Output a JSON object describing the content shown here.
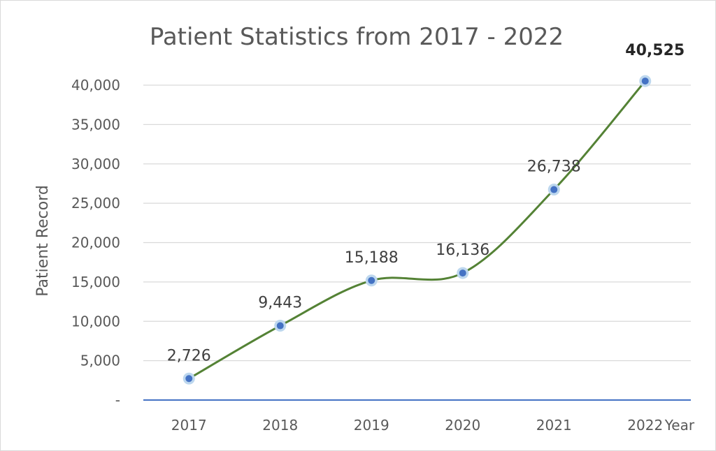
{
  "chart_data": {
    "type": "line",
    "title": "Patient Statistics from 2017 - 2022",
    "xlabel": "Year",
    "ylabel": "Patient Record",
    "categories": [
      "2017",
      "2018",
      "2019",
      "2020",
      "2021",
      "2022"
    ],
    "values": [
      2726,
      9443,
      15188,
      16136,
      26738,
      40525
    ],
    "data_labels": [
      "2,726",
      "9,443",
      "15,188",
      "16,136",
      "26,738",
      "40,525"
    ],
    "highlight_label_index": 5,
    "y_ticks": [
      "-",
      "5,000",
      "10,000",
      "15,000",
      "20,000",
      "25,000",
      "30,000",
      "35,000",
      "40,000"
    ],
    "y_tick_values": [
      0,
      5000,
      10000,
      15000,
      20000,
      25000,
      30000,
      35000,
      40000
    ],
    "ylim": [
      0,
      40000
    ],
    "grid": true,
    "smooth": true,
    "colors": {
      "line": "#548235",
      "marker": "#4472c4",
      "marker_halo": "#bdd7ee",
      "x_axis": "#4472c4",
      "grid": "#d9d9d9"
    }
  }
}
